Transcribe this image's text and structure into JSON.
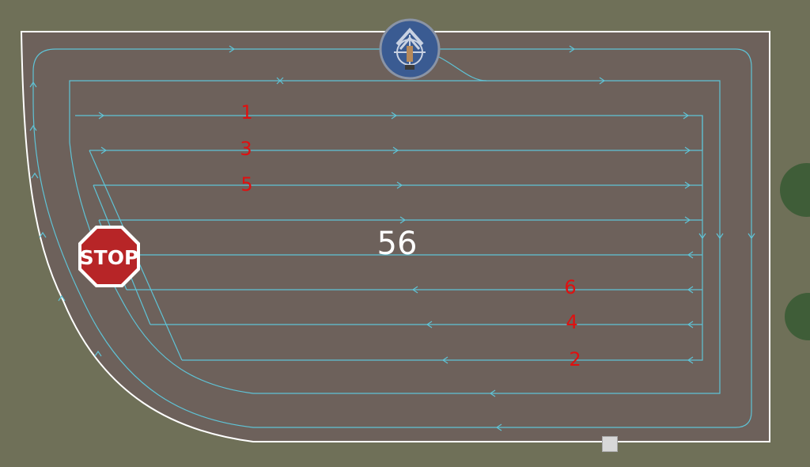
{
  "field": {
    "number": "56"
  },
  "lane_labels": [
    "1",
    "3",
    "5",
    "6",
    "4",
    "2"
  ],
  "markers": {
    "stop_text": "STOP",
    "start_icon": "tractor-start-icon",
    "end_icon": "waypoint-end-icon"
  },
  "colors": {
    "background": "#6f7058",
    "field": "#6d615b",
    "boundary": "#ffffff",
    "path": "#5fc3d6",
    "label": "#e01010",
    "stop_sign": "#b72527",
    "start_marker": "#3a5b92"
  }
}
